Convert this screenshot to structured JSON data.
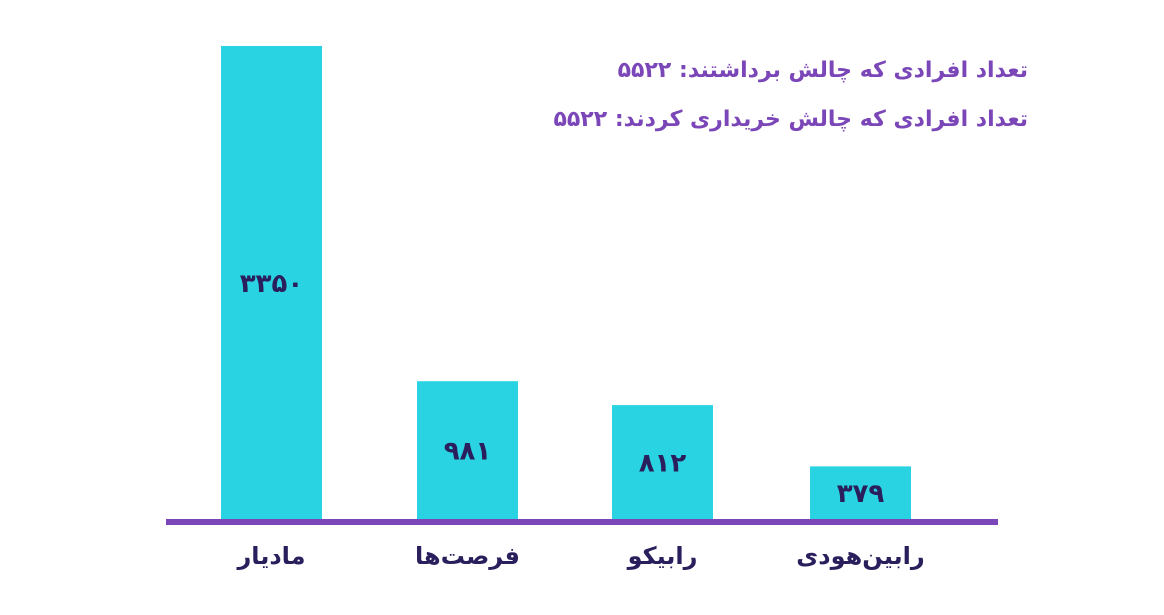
{
  "info": {
    "line1_label": "تعداد افرادی که چالش برداشتند:",
    "line1_value": "۵۵۲۲",
    "line2_label": "تعداد افرادی که چالش خریداری کردند:",
    "line2_value": "۵۵۲۲"
  },
  "colors": {
    "bar": "#29d3e1",
    "axis": "#7a46b8",
    "info_text": "#7a46b8",
    "label_text": "#2a1f5c"
  },
  "chart_data": {
    "type": "bar",
    "categories": [
      "مادیار",
      "فرصت‌ها",
      "رابیکو",
      "رابین‌هودی"
    ],
    "values": [
      3350,
      981,
      812,
      379
    ],
    "value_labels": [
      "۳۳۵۰",
      "۹۸۱",
      "۸۱۲",
      "۳۷۹"
    ],
    "title": "",
    "xlabel": "",
    "ylabel": "",
    "grid": false
  }
}
